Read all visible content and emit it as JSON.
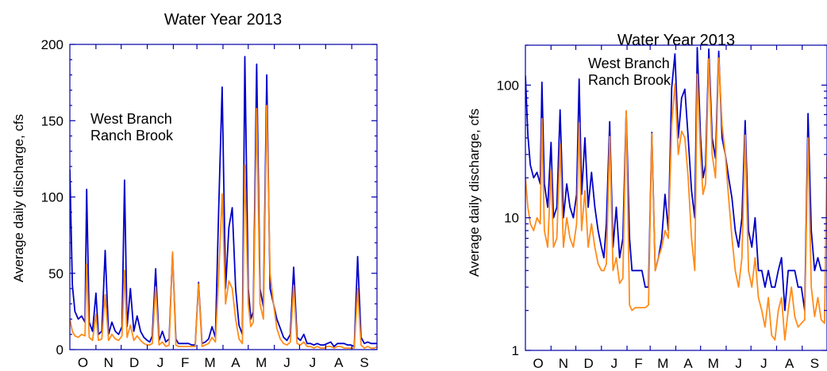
{
  "chart_data": [
    {
      "type": "line",
      "title": "Water Year 2013",
      "xlabel": "",
      "ylabel": "Average daily discharge, cfs",
      "yscale": "linear",
      "ylim": [
        0,
        200
      ],
      "yticks": [
        0,
        50,
        100,
        150,
        200
      ],
      "xlim": [
        0,
        365
      ],
      "month_labels": [
        "O",
        "N",
        "D",
        "J",
        "F",
        "M",
        "A",
        "M",
        "J",
        "J",
        "A",
        "S"
      ],
      "legend_placement": "upper-left",
      "series": [
        {
          "name": "West Branch",
          "color": "#0000c8",
          "day": [
            0,
            3,
            6,
            10,
            14,
            18,
            20,
            23,
            27,
            31,
            34,
            38,
            42,
            46,
            50,
            54,
            58,
            62,
            65,
            68,
            72,
            76,
            80,
            84,
            88,
            92,
            95,
            98,
            102,
            106,
            110,
            114,
            118,
            122,
            126,
            129,
            133,
            137,
            141,
            145,
            149,
            153,
            157,
            161,
            165,
            169,
            173,
            177,
            181,
            185,
            189,
            193,
            197,
            201,
            205,
            208,
            212,
            215,
            218,
            222,
            226,
            230,
            234,
            238,
            242,
            246,
            250,
            254,
            258,
            262,
            266,
            270,
            274,
            278,
            282,
            286,
            290,
            294,
            298,
            302,
            306,
            310,
            314,
            318,
            322,
            326,
            330,
            334,
            338,
            342,
            346,
            350,
            354,
            358,
            362,
            365
          ],
          "values": [
            118,
            42,
            25,
            20,
            22,
            18,
            105,
            18,
            12,
            37,
            10,
            12,
            65,
            10,
            18,
            12,
            10,
            15,
            111,
            15,
            40,
            12,
            22,
            12,
            8,
            6,
            5,
            9,
            53,
            6,
            12,
            5,
            7,
            63,
            7,
            4,
            4,
            4,
            4,
            3,
            3,
            44,
            4,
            5,
            7,
            15,
            8,
            95,
            172,
            40,
            80,
            93,
            40,
            16,
            10,
            192,
            40,
            20,
            25,
            187,
            40,
            28,
            180,
            40,
            30,
            20,
            14,
            8,
            6,
            10,
            54,
            8,
            6,
            10,
            4,
            4,
            3,
            4,
            3,
            3,
            4,
            5,
            2,
            4,
            4,
            4,
            3,
            3,
            2,
            61,
            8,
            4,
            5,
            4,
            4,
            4
          ],
          "values_right": [
            118,
            42,
            25,
            20,
            22,
            18,
            105,
            18,
            12,
            37,
            10,
            12,
            65,
            10,
            18,
            12,
            10,
            15,
            111,
            15,
            40,
            12,
            22,
            12,
            8,
            6,
            5,
            9,
            53,
            6,
            12,
            5,
            7,
            63,
            7,
            4,
            4,
            4,
            4,
            3,
            3,
            44,
            4,
            5,
            7,
            15,
            8,
            95,
            172,
            40,
            80,
            93,
            40,
            16,
            10,
            192,
            40,
            20,
            25,
            187,
            40,
            28,
            180,
            40,
            30,
            20,
            14,
            8,
            6,
            10,
            54,
            8,
            6,
            10,
            4,
            4,
            3,
            4,
            3,
            3,
            4,
            5,
            2,
            4,
            4,
            4,
            3,
            3,
            2,
            61,
            8,
            4,
            5,
            4,
            4,
            4
          ]
        },
        {
          "name": "Ranch Brook",
          "color": "#ff8c1a",
          "day": [
            0,
            3,
            6,
            10,
            14,
            18,
            20,
            23,
            27,
            31,
            34,
            38,
            42,
            46,
            50,
            54,
            58,
            62,
            65,
            68,
            72,
            76,
            80,
            84,
            88,
            92,
            95,
            98,
            102,
            106,
            110,
            114,
            118,
            122,
            126,
            129,
            133,
            137,
            141,
            145,
            149,
            153,
            157,
            161,
            165,
            169,
            173,
            177,
            181,
            185,
            189,
            193,
            197,
            201,
            205,
            208,
            212,
            215,
            218,
            222,
            226,
            230,
            234,
            238,
            242,
            246,
            250,
            254,
            258,
            262,
            266,
            270,
            274,
            278,
            282,
            286,
            290,
            294,
            298,
            302,
            306,
            310,
            314,
            318,
            322,
            326,
            330,
            334,
            338,
            342,
            346,
            350,
            354,
            358,
            362,
            365
          ],
          "values": [
            20,
            12,
            9,
            8,
            10,
            9,
            56,
            8,
            6,
            23,
            6,
            7,
            36,
            6,
            10,
            7,
            6,
            9,
            52,
            8,
            16,
            6,
            9,
            6,
            4,
            3,
            3,
            4,
            41,
            3,
            5,
            2,
            3,
            64,
            3,
            2,
            2,
            2,
            2,
            2,
            2,
            43,
            2,
            3,
            4,
            8,
            5,
            50,
            102,
            30,
            45,
            40,
            20,
            7,
            4,
            121,
            30,
            15,
            18,
            158,
            30,
            20,
            160,
            50,
            30,
            14,
            7,
            4,
            3,
            5,
            42,
            4,
            3,
            5,
            2,
            2,
            1,
            2,
            1,
            1,
            2,
            2,
            1,
            2,
            2,
            1,
            1,
            1,
            1,
            40,
            3,
            1,
            2,
            1,
            1,
            2
          ],
          "values_right": [
            20,
            12,
            9,
            8,
            10,
            9,
            56,
            8,
            6,
            23,
            6,
            7,
            36,
            6,
            10,
            7,
            6,
            9,
            52,
            8,
            16,
            6,
            9,
            6,
            4.5,
            4,
            4,
            4.5,
            41,
            4,
            5,
            3.2,
            3.5,
            64,
            2.2,
            2,
            2.1,
            2.1,
            2.1,
            2.1,
            2.2,
            43,
            4,
            5,
            6,
            8,
            7,
            50,
            102,
            30,
            45,
            40,
            20,
            7,
            4,
            121,
            30,
            15,
            18,
            158,
            30,
            20,
            160,
            50,
            30,
            14,
            7,
            4,
            3,
            5,
            42,
            4,
            3,
            5,
            2.5,
            2,
            1.5,
            2.5,
            1.3,
            1.2,
            2,
            2.5,
            1.2,
            2,
            3,
            1.8,
            1.5,
            1.6,
            1.7,
            40,
            3,
            1.8,
            2.5,
            1.7,
            1.6,
            29
          ]
        }
      ]
    },
    {
      "type": "line",
      "title": "Water Year 2013",
      "xlabel": "",
      "ylabel": "Average daily discharge, cfs",
      "yscale": "log",
      "ylim": [
        1,
        200
      ],
      "yticks": [
        1,
        10,
        100
      ],
      "xlim": [
        0,
        365
      ],
      "month_labels": [
        "O",
        "N",
        "D",
        "J",
        "F",
        "M",
        "A",
        "M",
        "J",
        "J",
        "A",
        "S"
      ],
      "legend_placement": "upper-left"
    }
  ]
}
